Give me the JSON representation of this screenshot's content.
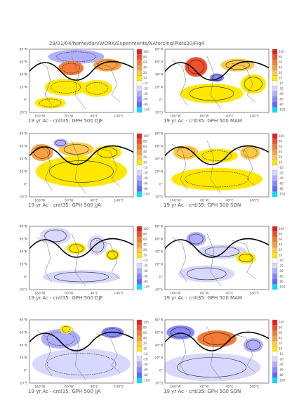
{
  "header": {
    "title": "29/01/04/home/dan/WORK/Experiments/NAforcing/Plots20/Fig4"
  },
  "axes": {
    "lat_labels": [
      "80°N",
      "60°N",
      "40°N",
      "20°N",
      "0°",
      "20°S"
    ],
    "lon_labels": [
      "160°W",
      "60°W",
      "40°E",
      "140°E"
    ]
  },
  "colorbar": {
    "levels": [
      100,
      80,
      60,
      40,
      20,
      10,
      -10,
      -20,
      -40,
      -60,
      -80,
      -100
    ],
    "colors": [
      "#e8201a",
      "#f0502a",
      "#f57a35",
      "#f9a040",
      "#fdc94a",
      "#ffe800",
      "#ffffff",
      "#d8d8ff",
      "#b0b0ff",
      "#8888ff",
      "#5a6cff",
      "#00e0ff"
    ]
  },
  "panels": [
    {
      "caption": "19 yr Ac - cntl35: GPH 500 DJF"
    },
    {
      "caption": "19 yr Ac - cntl35: GPH 500 MAM"
    },
    {
      "caption": "19 yr Ac - cntl35: GPH 500 JJA"
    },
    {
      "caption": "19 yr Ac - cntl35: GPH 500 SON"
    },
    {
      "caption": "19 yr Ac - cntl35: GPH 500 DJF"
    },
    {
      "caption": "19 yr Ac - cntl35: GPH 500 MAM"
    },
    {
      "caption": "19 yr Ac - cntl35: GPH 500 JJA"
    },
    {
      "caption": "19 yr Ac - cntl35: GPH 500 SON"
    }
  ]
}
